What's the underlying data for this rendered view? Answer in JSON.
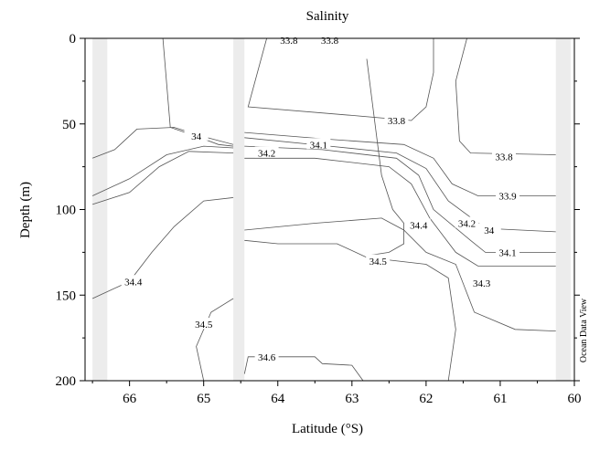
{
  "chart_data": {
    "type": "contour",
    "title": "Salinity",
    "xlabel": "Latitude (°S)",
    "ylabel": "Depth (m)",
    "xlim": [
      66.6,
      60
    ],
    "ylim": [
      0,
      200
    ],
    "x_ticks": [
      "66",
      "65",
      "64",
      "63",
      "62",
      "61",
      "60"
    ],
    "y_ticks": [
      "0",
      "50",
      "100",
      "150",
      "200"
    ],
    "watermark": "Ocean Data View",
    "blank_columns": [
      [
        66.5,
        66.3
      ],
      [
        64.6,
        64.45
      ],
      [
        60.25,
        60.05
      ]
    ],
    "contours": [
      {
        "level": "33.8",
        "points": [
          [
            64.15,
            0
          ],
          [
            64.4,
            40
          ],
          [
            63.0,
            45
          ],
          [
            62.2,
            48
          ],
          [
            62.0,
            40
          ],
          [
            61.9,
            20
          ],
          [
            61.9,
            0
          ]
        ]
      },
      {
        "level": "33.8",
        "points": [
          [
            61.45,
            0
          ],
          [
            61.6,
            25
          ],
          [
            61.55,
            60
          ],
          [
            61.4,
            67
          ],
          [
            60.25,
            68
          ]
        ]
      },
      {
        "level": "33.8",
        "points": [
          [
            65.55,
            0
          ],
          [
            65.45,
            52
          ],
          [
            65.05,
            58
          ],
          [
            64.8,
            62
          ],
          [
            64.6,
            63
          ]
        ]
      },
      {
        "level": "33.9",
        "points": [
          [
            64.45,
            55
          ],
          [
            63.3,
            59
          ],
          [
            62.3,
            62
          ],
          [
            61.9,
            70
          ],
          [
            61.65,
            85
          ],
          [
            61.3,
            92
          ],
          [
            60.25,
            92
          ]
        ]
      },
      {
        "level": "34",
        "points": [
          [
            66.5,
            70
          ],
          [
            66.2,
            65
          ],
          [
            65.9,
            53
          ],
          [
            65.4,
            52
          ],
          [
            64.95,
            58
          ],
          [
            64.6,
            62
          ]
        ]
      },
      {
        "level": "34",
        "points": [
          [
            64.45,
            58
          ],
          [
            63.3,
            63
          ],
          [
            62.4,
            67
          ],
          [
            62.0,
            76
          ],
          [
            61.7,
            95
          ],
          [
            61.2,
            111
          ],
          [
            60.25,
            113
          ]
        ]
      },
      {
        "level": "34.1",
        "points": [
          [
            66.5,
            92
          ],
          [
            66.0,
            82
          ],
          [
            65.5,
            68
          ],
          [
            65.0,
            63
          ],
          [
            64.6,
            64
          ]
        ]
      },
      {
        "level": "34.1",
        "points": [
          [
            64.45,
            63
          ],
          [
            63.4,
            65
          ],
          [
            62.4,
            70
          ],
          [
            62.1,
            80
          ],
          [
            61.9,
            100
          ],
          [
            61.4,
            118
          ],
          [
            61.2,
            125
          ],
          [
            60.25,
            125
          ]
        ]
      },
      {
        "level": "34.2",
        "points": [
          [
            66.5,
            97
          ],
          [
            66.0,
            90
          ],
          [
            65.6,
            75
          ],
          [
            65.2,
            66
          ],
          [
            64.6,
            67
          ]
        ]
      },
      {
        "level": "34.2",
        "points": [
          [
            64.45,
            70
          ],
          [
            63.5,
            70
          ],
          [
            62.5,
            75
          ],
          [
            62.2,
            85
          ],
          [
            61.95,
            105
          ],
          [
            61.6,
            125
          ],
          [
            61.3,
            133
          ],
          [
            60.25,
            133
          ]
        ]
      },
      {
        "level": "34.3",
        "points": [
          [
            64.45,
            112
          ],
          [
            63.5,
            108
          ],
          [
            62.6,
            105
          ],
          [
            62.3,
            112
          ],
          [
            62.0,
            125
          ],
          [
            61.6,
            132
          ],
          [
            61.35,
            160
          ],
          [
            60.8,
            170
          ],
          [
            60.25,
            171
          ]
        ]
      },
      {
        "level": "34.4",
        "points": [
          [
            66.5,
            152
          ],
          [
            66.0,
            142
          ],
          [
            65.7,
            125
          ],
          [
            65.4,
            110
          ],
          [
            65.0,
            95
          ],
          [
            64.6,
            93
          ]
        ]
      },
      {
        "level": "34.4",
        "points": [
          [
            62.8,
            12
          ],
          [
            62.6,
            80
          ],
          [
            62.45,
            100
          ],
          [
            62.3,
            108
          ],
          [
            62.3,
            120
          ],
          [
            62.5,
            125
          ],
          [
            62.8,
            127
          ]
        ]
      },
      {
        "level": "34.5",
        "points": [
          [
            65.0,
            200
          ],
          [
            65.1,
            180
          ],
          [
            64.9,
            160
          ],
          [
            64.6,
            152
          ]
        ]
      },
      {
        "level": "34.5",
        "points": [
          [
            64.45,
            118
          ],
          [
            64.0,
            120
          ],
          [
            63.2,
            120
          ],
          [
            62.8,
            128
          ],
          [
            62.0,
            132
          ],
          [
            61.7,
            140
          ],
          [
            61.6,
            170
          ],
          [
            61.7,
            200
          ]
        ]
      },
      {
        "level": "34.6",
        "points": [
          [
            64.45,
            196
          ],
          [
            64.4,
            186
          ],
          [
            63.5,
            186
          ],
          [
            63.4,
            190
          ],
          [
            63.0,
            191
          ],
          [
            62.85,
            200
          ]
        ]
      }
    ],
    "contour_labels": [
      {
        "text": "33.8",
        "x": 63.85,
        "y": 1
      },
      {
        "text": "33.8",
        "x": 63.3,
        "y": 1
      },
      {
        "text": "33.8",
        "x": 62.4,
        "y": 48
      },
      {
        "text": "33.8",
        "x": 60.95,
        "y": 69
      },
      {
        "text": "33.9",
        "x": 60.9,
        "y": 92
      },
      {
        "text": "34",
        "x": 65.1,
        "y": 57
      },
      {
        "text": "34",
        "x": 61.15,
        "y": 112
      },
      {
        "text": "34.1",
        "x": 63.45,
        "y": 62
      },
      {
        "text": "34.1",
        "x": 60.9,
        "y": 125
      },
      {
        "text": "34.2",
        "x": 64.15,
        "y": 67
      },
      {
        "text": "34.2",
        "x": 61.45,
        "y": 108
      },
      {
        "text": "34.3",
        "x": 61.25,
        "y": 143
      },
      {
        "text": "34.4",
        "x": 65.95,
        "y": 142
      },
      {
        "text": "34.4",
        "x": 62.1,
        "y": 109
      },
      {
        "text": "34.5",
        "x": 65.0,
        "y": 167
      },
      {
        "text": "34.5",
        "x": 62.65,
        "y": 130
      },
      {
        "text": "34.6",
        "x": 64.15,
        "y": 186
      }
    ]
  }
}
